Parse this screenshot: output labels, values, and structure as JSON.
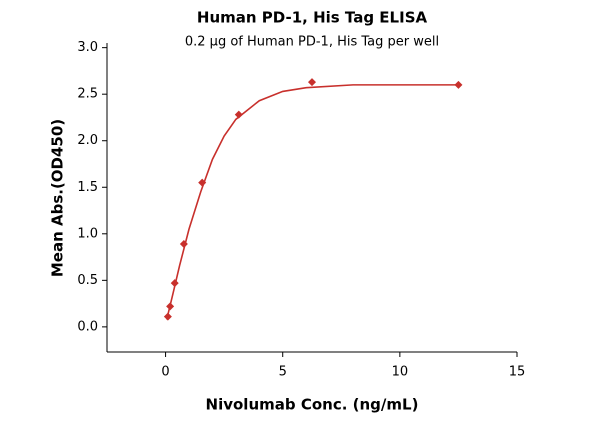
{
  "chart_data": {
    "type": "scatter",
    "title": "Human PD-1, His Tag ELISA",
    "subtitle": "0.2 µg of Human PD-1, His Tag per well",
    "x_label": "Nivolumab Conc. (ng/mL)",
    "y_label": "Mean Abs.(OD450)",
    "xlim": [
      -2.5,
      15
    ],
    "xticks": [
      0,
      5,
      10,
      15
    ],
    "ylim": [
      -0.27,
      3.05
    ],
    "yticks": [
      {
        "value": 0,
        "label": "0.0"
      },
      0.5,
      {
        "value": 1,
        "label": "1.0"
      },
      1.5,
      {
        "value": 2,
        "label": "2.0"
      },
      2.5,
      {
        "value": 3,
        "label": "3.0"
      }
    ],
    "series": [
      {
        "type": "scatter",
        "color": "#c8302c",
        "x": [
          0.098,
          0.195,
          0.391,
          0.781,
          1.5625,
          3.125,
          6.25,
          12.5
        ],
        "values": [
          0.11,
          0.22,
          0.47,
          0.89,
          1.55,
          2.28,
          2.63,
          2.6
        ]
      },
      {
        "type": "line",
        "color": "#c8302c",
        "x": [
          0.05,
          0.3,
          0.6,
          1,
          1.5,
          2,
          2.5,
          3,
          4,
          5,
          6,
          8,
          10,
          12.5
        ],
        "values": [
          0.08,
          0.34,
          0.66,
          1.05,
          1.45,
          1.8,
          2.05,
          2.23,
          2.43,
          2.53,
          2.57,
          2.6,
          2.6,
          2.6
        ]
      }
    ]
  }
}
